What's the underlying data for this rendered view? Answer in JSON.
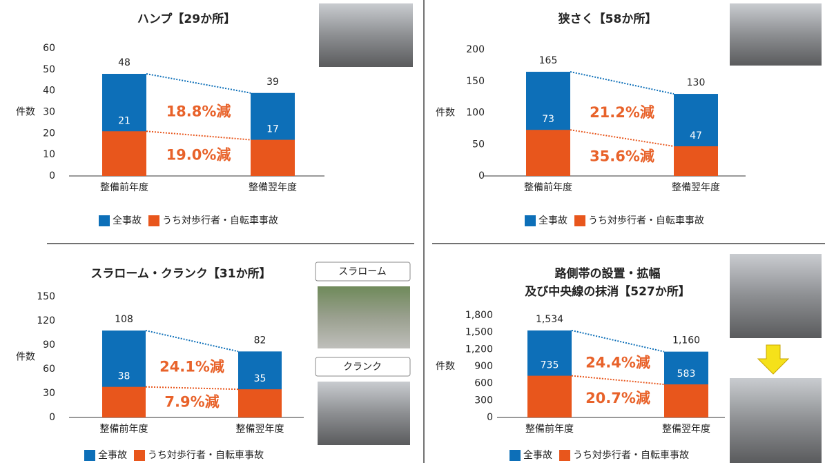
{
  "chart_data": [
    {
      "type": "bar",
      "title": [
        "ハンプ【29か所】"
      ],
      "y_label": "件数",
      "categories": [
        "整備前年度",
        "整備翌年度"
      ],
      "series": [
        {
          "name": "全事故",
          "color": "#0d6fb8",
          "values": [
            48,
            39
          ]
        },
        {
          "name": "うち対歩行者・自転車事故",
          "color": "#e8561c",
          "values": [
            21,
            17
          ]
        }
      ],
      "annotations": [
        "18.8%減",
        "19.0%減"
      ],
      "ylim": [
        0,
        60
      ],
      "yticks": [
        0,
        10,
        20,
        30,
        40,
        50,
        60
      ]
    },
    {
      "type": "bar",
      "title": [
        "狭さく【58か所】"
      ],
      "y_label": "件数",
      "categories": [
        "整備前年度",
        "整備翌年度"
      ],
      "series": [
        {
          "name": "全事故",
          "color": "#0d6fb8",
          "values": [
            165,
            130
          ]
        },
        {
          "name": "うち対歩行者・自転車事故",
          "color": "#e8561c",
          "values": [
            73,
            47
          ]
        }
      ],
      "annotations": [
        "21.2%減",
        "35.6%減"
      ],
      "ylim": [
        0,
        200
      ],
      "yticks": [
        0,
        50,
        100,
        150,
        200
      ]
    },
    {
      "type": "bar",
      "title": [
        "スラローム・クランク【31か所】"
      ],
      "y_label": "件数",
      "photo_labels": [
        "スラローム",
        "クランク"
      ],
      "categories": [
        "整備前年度",
        "整備翌年度"
      ],
      "series": [
        {
          "name": "全事故",
          "color": "#0d6fb8",
          "values": [
            108,
            82
          ]
        },
        {
          "name": "うち対歩行者・自転車事故",
          "color": "#e8561c",
          "values": [
            38,
            35
          ]
        }
      ],
      "annotations": [
        "24.1%減",
        "7.9%減"
      ],
      "ylim": [
        0,
        150
      ],
      "yticks": [
        0,
        30,
        60,
        90,
        120,
        150
      ]
    },
    {
      "type": "bar",
      "title": [
        "路側帯の設置・拡幅",
        "及び中央線の抹消【527か所】"
      ],
      "y_label": "件数",
      "categories": [
        "整備前年度",
        "整備翌年度"
      ],
      "series": [
        {
          "name": "全事故",
          "color": "#0d6fb8",
          "values": [
            1534,
            1160
          ],
          "value_labels": [
            "1,534",
            "1,160"
          ]
        },
        {
          "name": "うち対歩行者・自転車事故",
          "color": "#e8561c",
          "values": [
            735,
            583
          ]
        }
      ],
      "annotations": [
        "24.4%減",
        "20.7%減"
      ],
      "ylim": [
        0,
        1800
      ],
      "yticks": [
        0,
        300,
        600,
        900,
        {
          "value": 1200,
          "label": "1,200"
        },
        {
          "value": 1500,
          "label": "1,500"
        },
        {
          "value": 1800,
          "label": "1,800"
        }
      ]
    }
  ]
}
